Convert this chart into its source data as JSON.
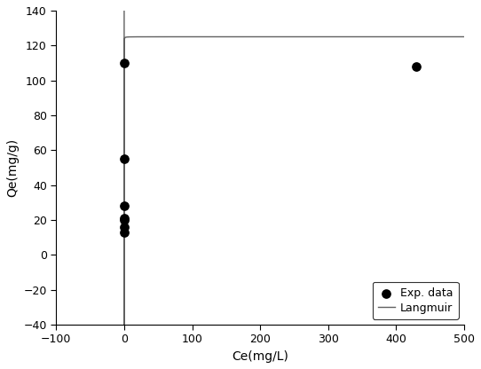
{
  "exp_x": [
    0.5,
    0.5,
    0.5,
    0.5,
    0.5,
    0.5,
    0.5,
    430
  ],
  "exp_y": [
    110,
    55,
    28,
    21,
    20,
    16,
    13,
    108
  ],
  "langmuir_qmax": 125.0,
  "langmuir_KL": 200.0,
  "xlim": [
    -100,
    500
  ],
  "ylim": [
    -40,
    140
  ],
  "xticks": [
    -100,
    0,
    100,
    200,
    300,
    400,
    500
  ],
  "yticks": [
    -40,
    -20,
    0,
    20,
    40,
    60,
    80,
    100,
    120,
    140
  ],
  "xlabel": "Ce(mg/L)",
  "ylabel": "Qe(mg/g)",
  "legend_dot": "Exp. data",
  "legend_line": "Langmuir",
  "line_color": "#606060",
  "dot_color": "#000000",
  "background_color": "#ffffff",
  "figsize": [
    5.42,
    4.16
  ],
  "dpi": 100
}
